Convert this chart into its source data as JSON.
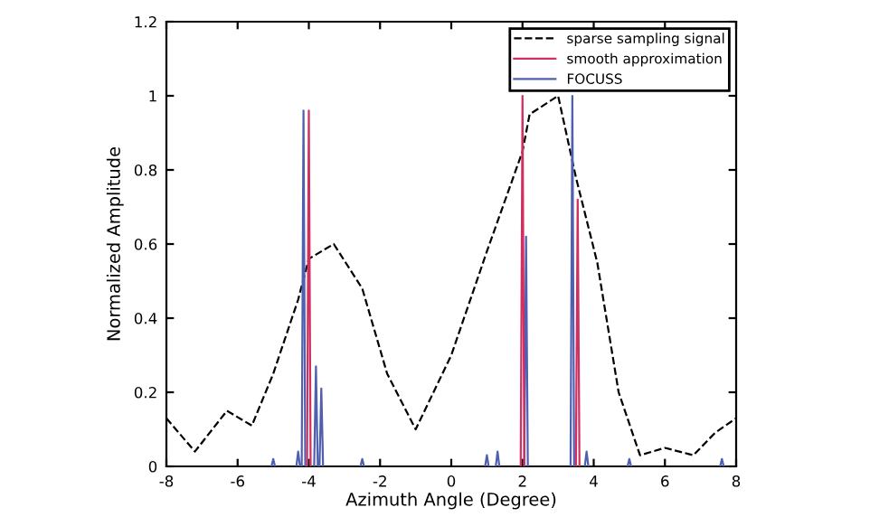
{
  "chart_data": {
    "type": "line",
    "xlabel": "Azimuth Angle (Degree)",
    "ylabel": "Normalized Amplitude",
    "xlim": [
      -8,
      8
    ],
    "ylim": [
      0,
      1.2
    ],
    "xticks": [
      -8,
      -6,
      -4,
      -2,
      0,
      2,
      4,
      6,
      8
    ],
    "yticks": [
      0,
      0.2,
      0.4,
      0.6,
      0.8,
      1,
      1.2
    ],
    "grid": false,
    "legend": "top right",
    "series": [
      {
        "name": "sparse sampling signal",
        "color": "#000000",
        "line_style": "dashed",
        "x": [
          -8,
          -7.2,
          -6.3,
          -5.6,
          -5,
          -4.3,
          -4,
          -3.3,
          -2.5,
          -1.8,
          -1,
          0,
          1,
          2,
          2.2,
          3,
          3.5,
          4.1,
          4.7,
          5.3,
          6,
          6.8,
          7.4,
          8
        ],
        "values": [
          0.13,
          0.04,
          0.15,
          0.11,
          0.25,
          0.45,
          0.56,
          0.6,
          0.48,
          0.25,
          0.1,
          0.3,
          0.58,
          0.85,
          0.95,
          1.0,
          0.78,
          0.55,
          0.2,
          0.03,
          0.05,
          0.03,
          0.09,
          0.13
        ]
      },
      {
        "name": "FOCUSS",
        "color": "#5060b0",
        "line_style": "solid",
        "x": [
          -5.05,
          -5,
          -4.95,
          -4.6,
          -4.35,
          -4.3,
          -4.25,
          -4.22,
          -4.2,
          -4.15,
          -4.1,
          -3.9,
          -3.85,
          -3.8,
          -3.75,
          -3.7,
          -3.65,
          -3.6,
          -3.0,
          -2.55,
          -2.5,
          -2.45,
          -1.0,
          0.95,
          1,
          1.05,
          1.25,
          1.3,
          1.35,
          1.7,
          2.05,
          2.1,
          2.15,
          2.6,
          3.35,
          3.4,
          3.45,
          3.6,
          3.75,
          3.8,
          3.85,
          4.5,
          4.95,
          5,
          5.05,
          7.0,
          7.55,
          7.6,
          7.65
        ],
        "values": [
          0,
          0.02,
          0,
          null,
          0,
          0.04,
          0,
          null,
          0,
          0.96,
          0,
          null,
          0,
          0.27,
          0,
          0,
          0.21,
          0,
          null,
          0,
          0.02,
          0,
          null,
          0,
          0.03,
          0,
          0,
          0.04,
          0,
          null,
          0,
          0.62,
          0,
          null,
          0,
          1.0,
          0,
          null,
          0,
          0.04,
          0,
          null,
          0,
          0.02,
          0,
          null,
          0,
          0.02,
          0
        ]
      },
      {
        "name": "smooth approximation",
        "color": "#d03060",
        "line_style": "solid",
        "x": [
          -4.05,
          -4,
          -3.95,
          0,
          1.95,
          2,
          2.05,
          3.0,
          3.5,
          3.55,
          3.6
        ],
        "values": [
          0,
          0.96,
          0,
          null,
          0,
          1.0,
          0,
          null,
          0,
          0.72,
          0
        ]
      }
    ]
  }
}
